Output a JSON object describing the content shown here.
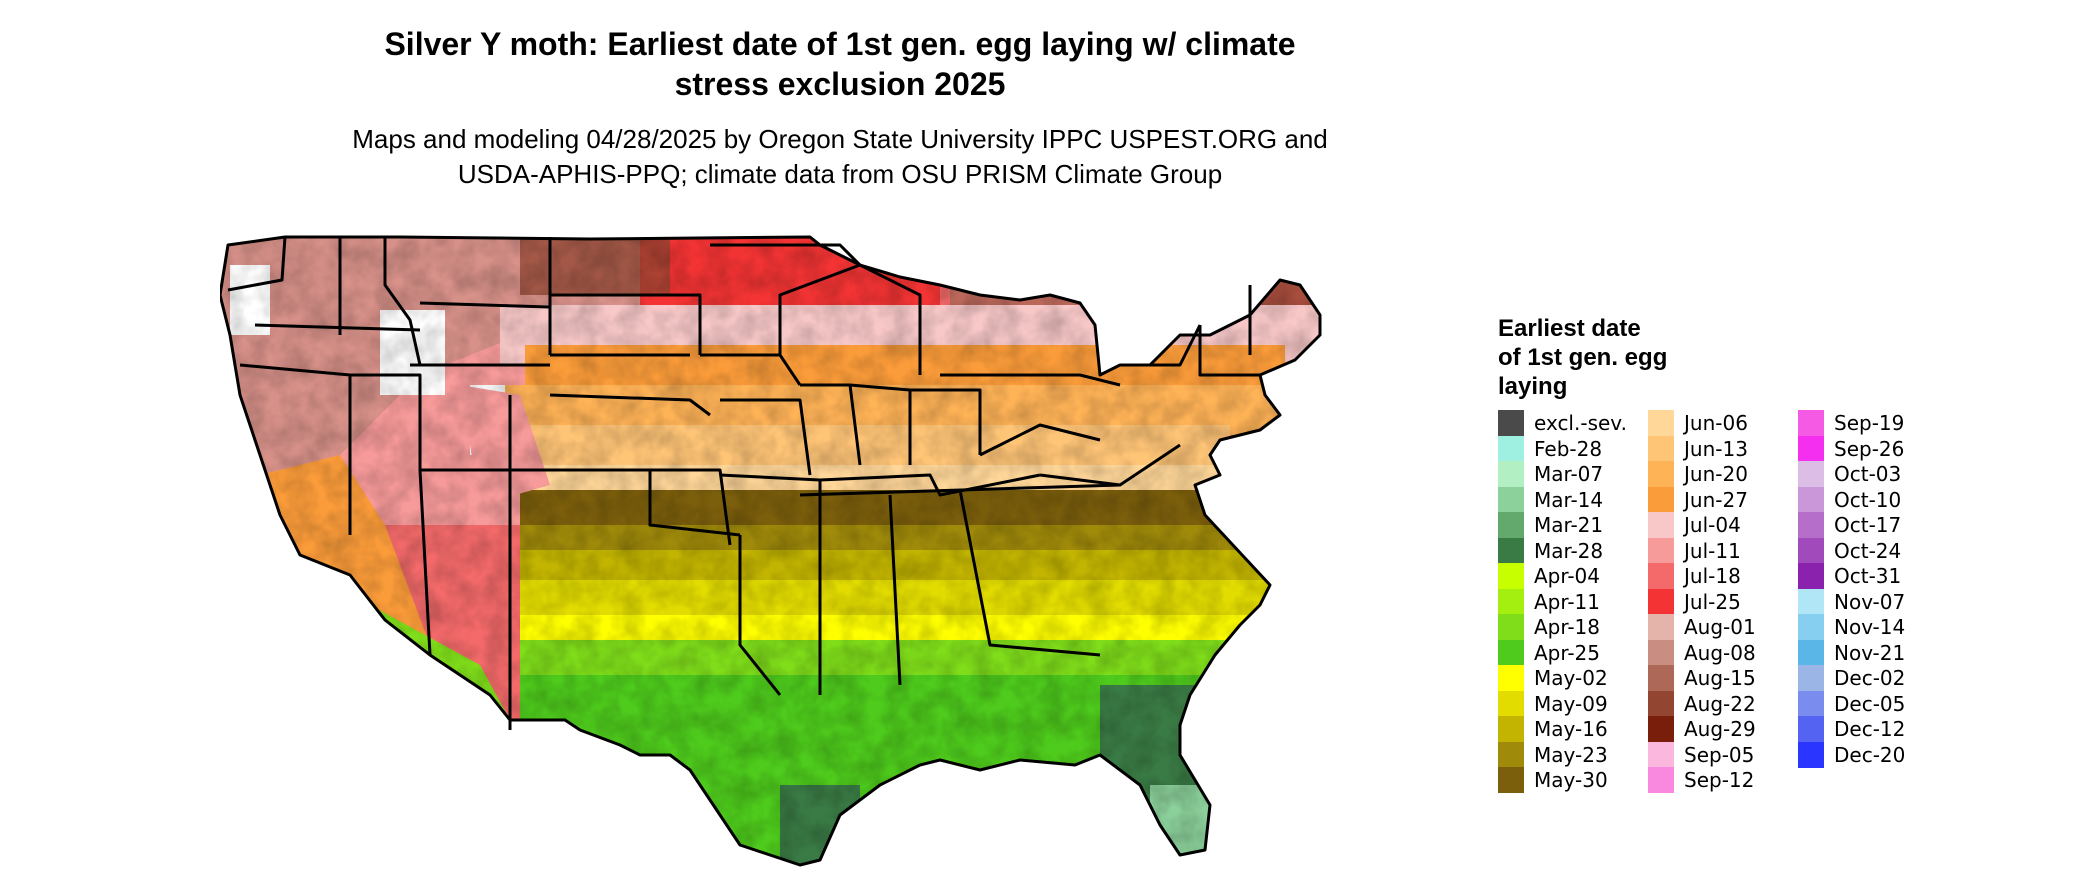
{
  "header": {
    "title_line1": "Silver Y moth: Earliest date of 1st gen. egg laying w/ climate",
    "title_line2": "stress exclusion 2025",
    "subtitle_line1": "Maps and modeling 04/28/2025 by Oregon State University IPPC USPEST.ORG and",
    "subtitle_line2": "USDA-APHIS-PPQ; climate data from OSU PRISM Climate Group"
  },
  "legend": {
    "title_line1": "Earliest date",
    "title_line2": "of 1st gen. egg",
    "title_line3": "laying",
    "columns": [
      [
        {
          "label": "excl.-sev.",
          "color": "#4a4a4a"
        },
        {
          "label": "Feb-28",
          "color": "#9ff0e0"
        },
        {
          "label": "Mar-07",
          "color": "#b2efc2"
        },
        {
          "label": "Mar-14",
          "color": "#8cd19b"
        },
        {
          "label": "Mar-21",
          "color": "#63a86c"
        },
        {
          "label": "Mar-28",
          "color": "#3a7b45"
        },
        {
          "label": "Apr-04",
          "color": "#c8ff00"
        },
        {
          "label": "Apr-11",
          "color": "#a4ee10"
        },
        {
          "label": "Apr-18",
          "color": "#7fdd1a"
        },
        {
          "label": "Apr-25",
          "color": "#4ecb1c"
        },
        {
          "label": "May-02",
          "color": "#ffff00"
        },
        {
          "label": "May-09",
          "color": "#e2dc00"
        },
        {
          "label": "May-16",
          "color": "#c2b400"
        },
        {
          "label": "May-23",
          "color": "#9f8a0a"
        },
        {
          "label": "May-30",
          "color": "#7c5f0c"
        }
      ],
      [
        {
          "label": "Jun-06",
          "color": "#ffd799"
        },
        {
          "label": "Jun-13",
          "color": "#ffc577"
        },
        {
          "label": "Jun-20",
          "color": "#ffb357"
        },
        {
          "label": "Jun-27",
          "color": "#fb9c3a"
        },
        {
          "label": "Jul-04",
          "color": "#f8c8c8"
        },
        {
          "label": "Jul-11",
          "color": "#f79a9a"
        },
        {
          "label": "Jul-18",
          "color": "#f46a6a"
        },
        {
          "label": "Jul-25",
          "color": "#f43434"
        },
        {
          "label": "Aug-01",
          "color": "#e4b4aa"
        },
        {
          "label": "Aug-08",
          "color": "#c98d82"
        },
        {
          "label": "Aug-15",
          "color": "#ad6858"
        },
        {
          "label": "Aug-22",
          "color": "#924632"
        },
        {
          "label": "Aug-29",
          "color": "#7a1e0c"
        },
        {
          "label": "Sep-05",
          "color": "#fbb7de"
        },
        {
          "label": "Sep-12",
          "color": "#f889de"
        }
      ],
      [
        {
          "label": "Sep-19",
          "color": "#f55ae5"
        },
        {
          "label": "Sep-26",
          "color": "#f52ff0"
        },
        {
          "label": "Oct-03",
          "color": "#dcbde5"
        },
        {
          "label": "Oct-10",
          "color": "#ca97d8"
        },
        {
          "label": "Oct-17",
          "color": "#b56fca"
        },
        {
          "label": "Oct-24",
          "color": "#a04abb"
        },
        {
          "label": "Oct-31",
          "color": "#8a22ad"
        },
        {
          "label": "Nov-07",
          "color": "#b0e6f6"
        },
        {
          "label": "Nov-14",
          "color": "#86cff0"
        },
        {
          "label": "Nov-21",
          "color": "#59b6e6"
        },
        {
          "label": "Dec-02",
          "color": "#9bb5e6"
        },
        {
          "label": "Dec-05",
          "color": "#7a8cee"
        },
        {
          "label": "Dec-12",
          "color": "#5563f2"
        },
        {
          "label": "Dec-20",
          "color": "#2a36ff"
        }
      ]
    ]
  }
}
